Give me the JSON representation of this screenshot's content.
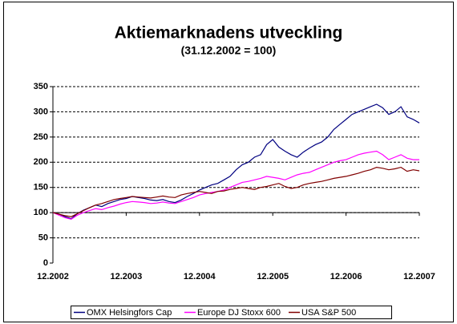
{
  "chart_data": {
    "type": "line",
    "title": "Aktiemarknadens utveckling",
    "subtitle": "(31.12.2002 = 100)",
    "x": [
      "12.2002",
      "01.2003",
      "02.2003",
      "03.2003",
      "04.2003",
      "05.2003",
      "06.2003",
      "07.2003",
      "08.2003",
      "09.2003",
      "10.2003",
      "11.2003",
      "12.2003",
      "01.2004",
      "02.2004",
      "03.2004",
      "04.2004",
      "05.2004",
      "06.2004",
      "07.2004",
      "08.2004",
      "09.2004",
      "10.2004",
      "11.2004",
      "12.2004",
      "01.2005",
      "02.2005",
      "03.2005",
      "04.2005",
      "05.2005",
      "06.2005",
      "07.2005",
      "08.2005",
      "09.2005",
      "10.2005",
      "11.2005",
      "12.2005",
      "01.2006",
      "02.2006",
      "03.2006",
      "04.2006",
      "05.2006",
      "06.2006",
      "07.2006",
      "08.2006",
      "09.2006",
      "10.2006",
      "11.2006",
      "12.2006",
      "01.2007",
      "02.2007",
      "03.2007",
      "04.2007",
      "05.2007",
      "06.2007",
      "07.2007",
      "08.2007",
      "09.2007",
      "10.2007",
      "11.2007",
      "12.2007"
    ],
    "xticks": [
      "12.2002",
      "12.2003",
      "12.2004",
      "12.2005",
      "12.2006",
      "12.2007"
    ],
    "series": [
      {
        "name": "OMX Helsingfors Cap",
        "color": "#000080",
        "values": [
          100,
          97,
          92,
          88,
          98,
          105,
          110,
          115,
          112,
          118,
          122,
          126,
          128,
          132,
          130,
          128,
          125,
          124,
          126,
          122,
          120,
          125,
          132,
          138,
          145,
          150,
          155,
          158,
          165,
          172,
          185,
          195,
          200,
          210,
          215,
          235,
          245,
          230,
          222,
          215,
          210,
          220,
          228,
          235,
          240,
          250,
          265,
          275,
          285,
          295,
          300,
          305,
          310,
          315,
          308,
          295,
          300,
          310,
          290,
          285,
          278
        ]
      },
      {
        "name": "Europe DJ Stoxx 600",
        "color": "#ff00ff",
        "values": [
          100,
          95,
          90,
          87,
          95,
          100,
          104,
          108,
          106,
          110,
          113,
          117,
          120,
          122,
          121,
          120,
          118,
          119,
          121,
          119,
          118,
          122,
          126,
          130,
          135,
          138,
          140,
          142,
          145,
          150,
          155,
          160,
          162,
          165,
          168,
          172,
          170,
          168,
          165,
          170,
          175,
          178,
          180,
          185,
          190,
          195,
          200,
          203,
          205,
          210,
          215,
          218,
          220,
          222,
          215,
          205,
          210,
          215,
          208,
          205,
          205
        ]
      },
      {
        "name": "USA S&P 500",
        "color": "#800000",
        "values": [
          100,
          97,
          94,
          92,
          98,
          104,
          110,
          115,
          118,
          122,
          126,
          128,
          130,
          132,
          131,
          130,
          129,
          131,
          133,
          131,
          130,
          135,
          138,
          140,
          142,
          140,
          138,
          142,
          143,
          146,
          148,
          150,
          148,
          146,
          150,
          152,
          155,
          158,
          152,
          148,
          150,
          155,
          158,
          160,
          162,
          165,
          168,
          170,
          172,
          175,
          178,
          182,
          185,
          190,
          188,
          185,
          187,
          190,
          182,
          185,
          183
        ]
      }
    ],
    "ylim": [
      0,
      350
    ],
    "yticks": [
      0,
      50,
      100,
      150,
      200,
      250,
      300,
      350
    ],
    "x_axis_at": 100,
    "grid": true,
    "legend": "bottom"
  }
}
